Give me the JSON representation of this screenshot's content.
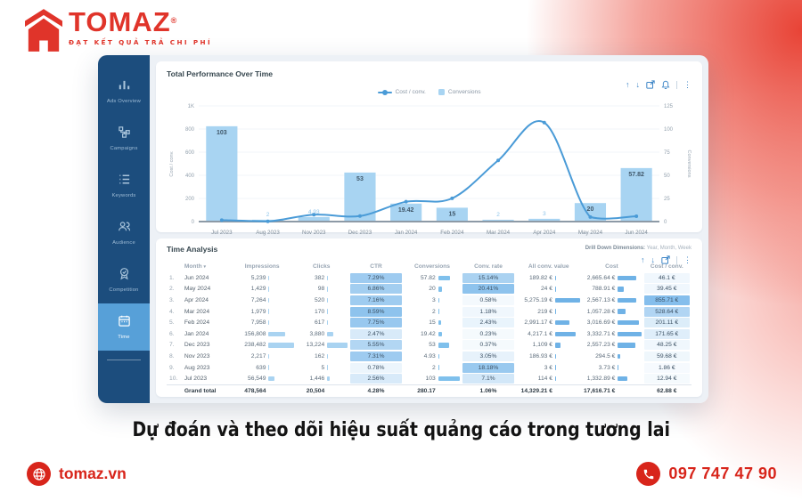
{
  "brand": {
    "name": "TOMAZ",
    "reg": "®",
    "tagline": "ĐẠT KẾT QUẢ TRẢ CHI PHÍ",
    "accent_red": "#e0342a"
  },
  "sidebar": {
    "items": [
      {
        "label": "Ads Overview",
        "icon": "bar-chart",
        "active": false
      },
      {
        "label": "Campaigns",
        "icon": "sitemap",
        "active": false
      },
      {
        "label": "Keywords",
        "icon": "list",
        "active": false
      },
      {
        "label": "Audience",
        "icon": "people",
        "active": false
      },
      {
        "label": "Competition",
        "icon": "badge",
        "active": false
      },
      {
        "label": "Time",
        "icon": "calendar",
        "active": true
      }
    ]
  },
  "chart_card": {
    "title": "Total Performance Over Time",
    "legend": {
      "line": "Cost / conv.",
      "bar": "Conversions"
    },
    "toolbar": [
      "arrow-up",
      "arrow-down",
      "export",
      "bell",
      "more"
    ]
  },
  "chart_data": {
    "type": "bar+line",
    "categories": [
      "Jul 2023",
      "Aug 2023",
      "Nov 2023",
      "Dec 2023",
      "Jan 2024",
      "Feb 2024",
      "Mar 2024",
      "Apr 2024",
      "May 2024",
      "Jun 2024"
    ],
    "series": [
      {
        "name": "Conversions",
        "type": "bar",
        "axis": "right",
        "values": [
          103,
          2,
          4.93,
          53,
          19.42,
          15,
          2,
          3,
          20,
          57.82
        ],
        "labels": [
          "103",
          "2",
          "4.93",
          "53",
          "19.42",
          "15",
          "2",
          "3",
          "20",
          "57.82"
        ]
      },
      {
        "name": "Cost / conv.",
        "type": "line",
        "axis": "left",
        "values": [
          12.94,
          1.86,
          59.68,
          48.25,
          171.65,
          201.11,
          528.64,
          855.71,
          39.45,
          46.1
        ]
      }
    ],
    "left_axis": {
      "title": "Cost / conv.",
      "max": 1000,
      "ticks": [
        "1K",
        "800",
        "600",
        "400",
        "200",
        "0"
      ]
    },
    "right_axis": {
      "title": "Conversions",
      "max": 125,
      "ticks": [
        "125",
        "100",
        "75",
        "50",
        "25",
        "0"
      ]
    },
    "colors": {
      "bar": "#a8d4f2",
      "line": "#4a9bd7"
    }
  },
  "table_card": {
    "title": "Time Analysis",
    "drill_label": "Drill Down Dimensions:",
    "drill_value": " Year, Month, Week",
    "sort_indicator": "▾",
    "columns": [
      "Month",
      "Impressions",
      "Clicks",
      "CTR",
      "Conversions",
      "Conv. rate",
      "All conv. value",
      "Cost",
      "Cost / conv."
    ],
    "rows": [
      [
        "1.",
        "Jun 2024",
        "5,239",
        "382",
        "7.29%",
        "57.82",
        "15.14%",
        "189.82 €",
        "2,665.64 €",
        "46.1 €"
      ],
      [
        "2.",
        "May 2024",
        "1,429",
        "98",
        "6.86%",
        "20",
        "20.41%",
        "24 €",
        "788.91 €",
        "39.45 €"
      ],
      [
        "3.",
        "Apr 2024",
        "7,264",
        "520",
        "7.16%",
        "3",
        "0.58%",
        "5,275.19 €",
        "2,567.13 €",
        "855.71 €"
      ],
      [
        "4.",
        "Mar 2024",
        "1,979",
        "170",
        "8.59%",
        "2",
        "1.18%",
        "219 €",
        "1,057.28 €",
        "528.64 €"
      ],
      [
        "5.",
        "Feb 2024",
        "7,958",
        "617",
        "7.75%",
        "15",
        "2.43%",
        "2,991.17 €",
        "3,016.69 €",
        "201.11 €"
      ],
      [
        "6.",
        "Jan 2024",
        "156,808",
        "3,880",
        "2.47%",
        "19.42",
        "0.23%",
        "4,217.1 €",
        "3,332.71 €",
        "171.65 €"
      ],
      [
        "7.",
        "Dec 2023",
        "238,482",
        "13,224",
        "5.55%",
        "53",
        "0.37%",
        "1,109 €",
        "2,557.23 €",
        "48.25 €"
      ],
      [
        "8.",
        "Nov 2023",
        "2,217",
        "162",
        "7.31%",
        "4.93",
        "3.05%",
        "186.93 €",
        "294.5 €",
        "59.68 €"
      ],
      [
        "9.",
        "Aug 2023",
        "639",
        "5",
        "0.78%",
        "2",
        "18.18%",
        "3 €",
        "3.73 €",
        "1.86 €"
      ],
      [
        "10.",
        "Jul 2023",
        "56,549",
        "1,446",
        "2.56%",
        "103",
        "7.1%",
        "114 €",
        "1,332.89 €",
        "12.94 €"
      ]
    ],
    "grand_total": [
      "",
      "Grand total",
      "478,564",
      "20,504",
      "4.28%",
      "280.17",
      "1.06%",
      "14,329.21 €",
      "17,616.71 €",
      "62.88 €"
    ]
  },
  "caption": {
    "text": "Dự đoán và theo dõi hiệu suất quảng cáo trong tương lai"
  },
  "footer": {
    "website": "tomaz.vn",
    "phone": "097 747 47 90"
  }
}
